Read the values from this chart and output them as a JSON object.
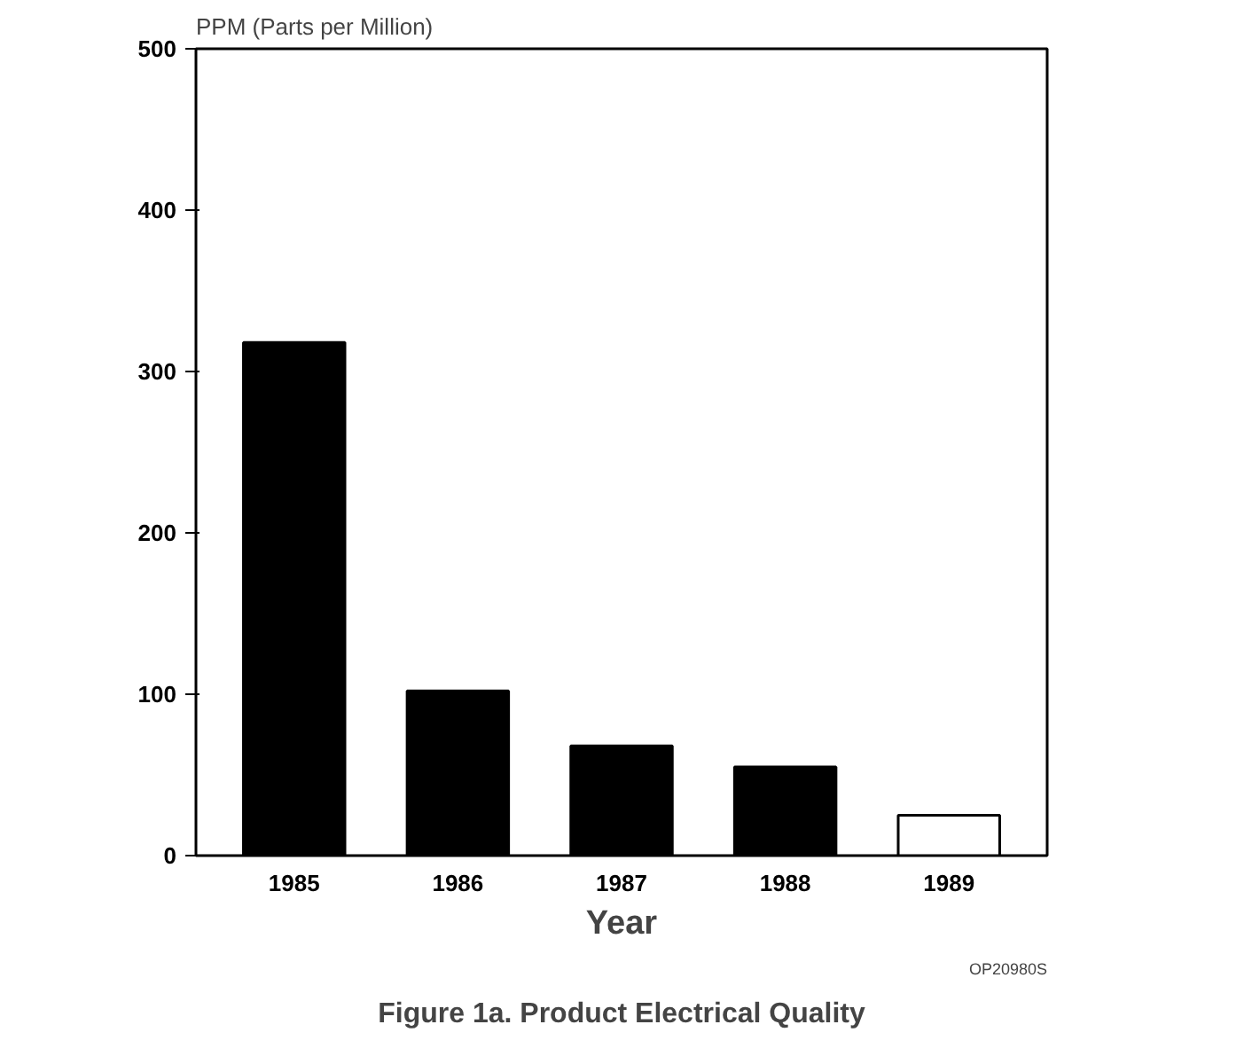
{
  "chart_data": {
    "type": "bar",
    "title": "Figure 1a. Product Electrical Quality",
    "xlabel": "Year",
    "ylabel": "PPM (Parts per Million)",
    "categories": [
      "1985",
      "1986",
      "1987",
      "1988",
      "1989"
    ],
    "values": [
      318,
      102,
      68,
      55,
      25
    ],
    "colors": [
      "#000000",
      "#000000",
      "#000000",
      "#000000",
      "#ffffff"
    ],
    "ylim": [
      0,
      500
    ],
    "yticks": [
      0,
      100,
      200,
      300,
      400,
      500
    ],
    "grid": false,
    "annotations": [
      "OP20980S"
    ]
  }
}
